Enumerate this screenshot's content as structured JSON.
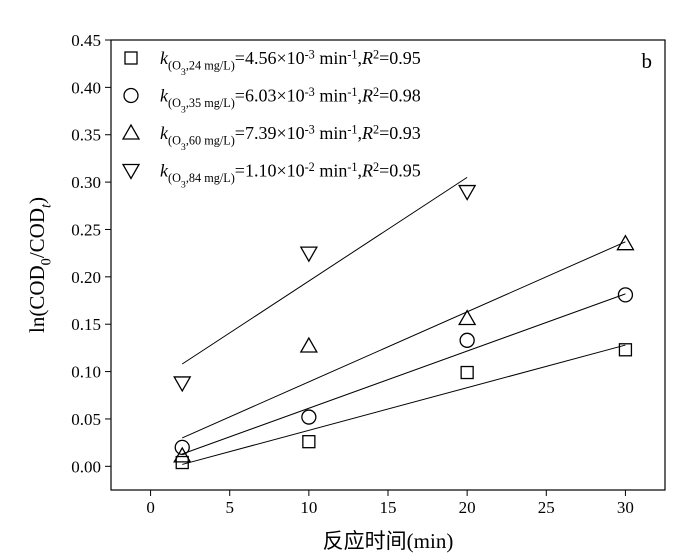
{
  "chart_data": {
    "type": "scatter",
    "annotation": "b",
    "x_label": "反应时间(min)",
    "y_label": [
      {
        "text": "ln(COD",
        "style": "normal"
      },
      {
        "text": "0",
        "style": "sub"
      },
      {
        "text": "/COD",
        "style": "normal"
      },
      {
        "text": "t",
        "style": "sub-italic"
      },
      {
        "text": ")",
        "style": "normal"
      }
    ],
    "xlim": [
      -2.5,
      32.5
    ],
    "ylim": [
      -0.025,
      0.45
    ],
    "xticks": [
      0,
      5,
      10,
      15,
      20,
      25,
      30
    ],
    "yticks": [
      {
        "value": 0,
        "label": "0.00"
      },
      {
        "value": 0.05,
        "label": "0.05"
      },
      {
        "value": 0.1,
        "label": "0.10"
      },
      {
        "value": 0.15,
        "label": "0.15"
      },
      {
        "value": 0.2,
        "label": "0.20"
      },
      {
        "value": 0.25,
        "label": "0.25"
      },
      {
        "value": 0.3,
        "label": "0.30"
      },
      {
        "value": 0.35,
        "label": "0.35"
      },
      {
        "value": 0.4,
        "label": "0.40"
      },
      {
        "value": 0.45,
        "label": "0.45"
      }
    ],
    "legend": "upper left",
    "series": [
      {
        "name": [
          {
            "text": "k",
            "style": "italic"
          },
          {
            "text": "(O",
            "style": "sub"
          },
          {
            "text": "3",
            "style": "sub2"
          },
          {
            "text": ",24 mg/L)",
            "style": "sub"
          },
          {
            "text": "=4.56×10",
            "style": "normal"
          },
          {
            "text": "-3",
            "style": "sup"
          },
          {
            "text": " min",
            "style": "normal"
          },
          {
            "text": "-1",
            "style": "sup"
          },
          {
            "text": ",",
            "style": "normal"
          },
          {
            "text": "R",
            "style": "italic"
          },
          {
            "text": "2",
            "style": "sup"
          },
          {
            "text": "=0.95",
            "style": "normal"
          }
        ],
        "marker": "square",
        "color": "#000000",
        "x": [
          2,
          10,
          20,
          30
        ],
        "values": [
          0.004,
          0.026,
          0.099,
          0.123
        ],
        "fit_x": [
          2,
          30
        ],
        "fit_y": [
          0.002,
          0.128
        ]
      },
      {
        "name": [
          {
            "text": "k",
            "style": "italic"
          },
          {
            "text": "(O",
            "style": "sub"
          },
          {
            "text": "3",
            "style": "sub2"
          },
          {
            "text": ",35 mg/L)",
            "style": "sub"
          },
          {
            "text": "=6.03×10",
            "style": "normal"
          },
          {
            "text": "-3",
            "style": "sup"
          },
          {
            "text": " min",
            "style": "normal"
          },
          {
            "text": "-1",
            "style": "sup"
          },
          {
            "text": ",",
            "style": "normal"
          },
          {
            "text": "R",
            "style": "italic"
          },
          {
            "text": "2",
            "style": "sup"
          },
          {
            "text": "=0.98",
            "style": "normal"
          }
        ],
        "marker": "circle",
        "color": "#000000",
        "x": [
          2,
          10,
          20,
          30
        ],
        "values": [
          0.02,
          0.052,
          0.133,
          0.181
        ],
        "fit_x": [
          2,
          30
        ],
        "fit_y": [
          0.013,
          0.182
        ]
      },
      {
        "name": [
          {
            "text": "k",
            "style": "italic"
          },
          {
            "text": "(O",
            "style": "sub"
          },
          {
            "text": "3",
            "style": "sub2"
          },
          {
            "text": ",60 mg/L)",
            "style": "sub"
          },
          {
            "text": "=7.39×10",
            "style": "normal"
          },
          {
            "text": "-3",
            "style": "sup"
          },
          {
            "text": " min",
            "style": "normal"
          },
          {
            "text": "-1",
            "style": "sup"
          },
          {
            "text": ",",
            "style": "normal"
          },
          {
            "text": "R",
            "style": "italic"
          },
          {
            "text": "2",
            "style": "sup"
          },
          {
            "text": "=0.93",
            "style": "normal"
          }
        ],
        "marker": "triangle-up",
        "color": "#000000",
        "x": [
          2,
          10,
          20,
          30
        ],
        "values": [
          0.011,
          0.127,
          0.156,
          0.235
        ],
        "fit_x": [
          2,
          30
        ],
        "fit_y": [
          0.03,
          0.237
        ]
      },
      {
        "name": [
          {
            "text": "k",
            "style": "italic"
          },
          {
            "text": "(O",
            "style": "sub"
          },
          {
            "text": "3",
            "style": "sub2"
          },
          {
            "text": ",84 mg/L)",
            "style": "sub"
          },
          {
            "text": "=1.10×10",
            "style": "normal"
          },
          {
            "text": "-2",
            "style": "sup"
          },
          {
            "text": " min",
            "style": "normal"
          },
          {
            "text": "-1",
            "style": "sup"
          },
          {
            "text": ",",
            "style": "normal"
          },
          {
            "text": "R",
            "style": "italic"
          },
          {
            "text": "2",
            "style": "sup"
          },
          {
            "text": "=0.95",
            "style": "normal"
          }
        ],
        "marker": "triangle-down",
        "color": "#000000",
        "x": [
          2,
          10,
          20
        ],
        "values": [
          0.088,
          0.225,
          0.29
        ],
        "fit_x": [
          2,
          20
        ],
        "fit_y": [
          0.108,
          0.305
        ]
      }
    ]
  }
}
